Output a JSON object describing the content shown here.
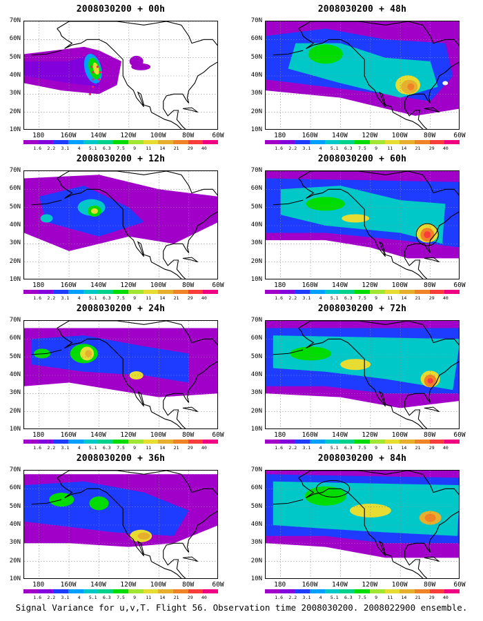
{
  "chart_data": {
    "type": "heatmap",
    "panels": [
      {
        "title": "2008030200 + 00h"
      },
      {
        "title": "2008030200 + 48h"
      },
      {
        "title": "2008030200 + 12h"
      },
      {
        "title": "2008030200 + 60h"
      },
      {
        "title": "2008030200 + 24h"
      },
      {
        "title": "2008030200 + 72h"
      },
      {
        "title": "2008030200 + 36h"
      },
      {
        "title": "2008030200 + 84h"
      }
    ],
    "y_ticks": [
      "70N",
      "60N",
      "50N",
      "40N",
      "30N",
      "20N",
      "10N"
    ],
    "y_range": [
      10,
      70
    ],
    "x_ticks": [
      "180",
      "160W",
      "140W",
      "120W",
      "100W",
      "80W",
      "60W"
    ],
    "x_range": [
      -190,
      -60
    ],
    "colorbar_labels": [
      "1.6",
      "2.2",
      "3.1",
      "4",
      "5.1",
      "6.3",
      "7.5",
      "9",
      "11",
      "14",
      "21",
      "29",
      "40"
    ],
    "colors": [
      "#a000c8",
      "#8200dc",
      "#1e3cff",
      "#00a0ff",
      "#00c8c8",
      "#00d28c",
      "#00dc00",
      "#a0e632",
      "#e6dc32",
      "#e6af2d",
      "#f08228",
      "#fa3c3c",
      "#f00082"
    ],
    "caption": "Signal Variance for u,v,T. Flight 56. Observation time 2008030200. 2008022900 ensemble."
  }
}
